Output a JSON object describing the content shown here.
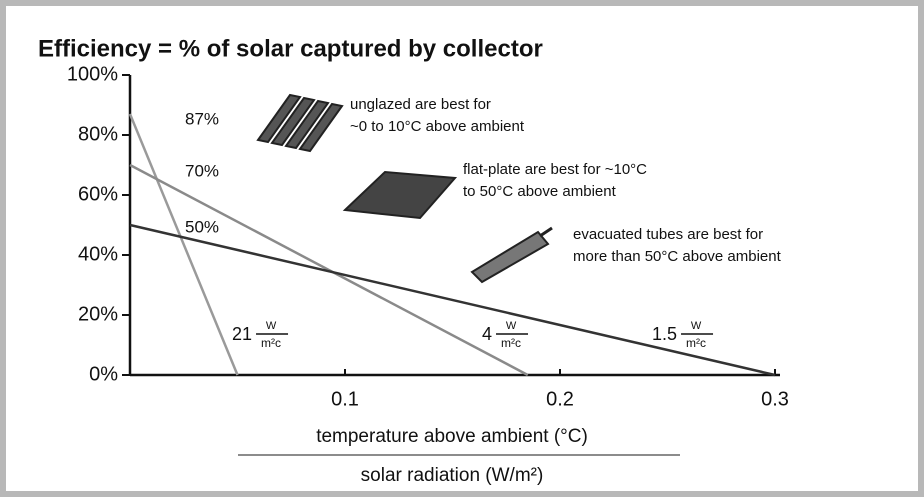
{
  "chart_data": {
    "type": "line",
    "title": "Efficiency = % of solar captured by collector",
    "xlabel": "temperature above ambient (°C)",
    "xlabel2": "solar radiation (W/m²)",
    "xlim": [
      0,
      0.3
    ],
    "xticks": [
      0.1,
      0.2,
      0.3
    ],
    "ylim": [
      0,
      100
    ],
    "yticks": [
      {
        "value": 0,
        "label": "0%"
      },
      {
        "value": 20,
        "label": "20%"
      },
      {
        "value": 40,
        "label": "40%"
      },
      {
        "value": 60,
        "label": "60%"
      },
      {
        "value": 80,
        "label": "80%"
      },
      {
        "value": 100,
        "label": "100%"
      }
    ],
    "series": [
      {
        "x": [
          0,
          0.05
        ],
        "values": [
          87,
          0
        ],
        "color": "#9a9a9a"
      },
      {
        "x": [
          0,
          0.185
        ],
        "values": [
          70,
          0
        ],
        "color": "#8a8a8a"
      },
      {
        "x": [
          0,
          0.3
        ],
        "values": [
          50,
          0
        ],
        "color": "#333333"
      }
    ],
    "intercept_labels": [
      "87%",
      "70%",
      "50%"
    ],
    "slope_labels": [
      {
        "number": 21,
        "numerator": "W",
        "denominator": "m²c"
      },
      {
        "number": 4,
        "numerator": "W",
        "denominator": "m²c"
      },
      {
        "number": 1.5,
        "numerator": "W",
        "denominator": "m²c"
      }
    ],
    "notes": [
      [
        "unglazed are best for",
        "~0 to 10°C above ambient"
      ],
      [
        "flat-plate are best for ~10°C",
        "to 50°C above ambient"
      ],
      [
        "evacuated tubes are best for",
        "more than 50°C above ambient"
      ]
    ]
  }
}
